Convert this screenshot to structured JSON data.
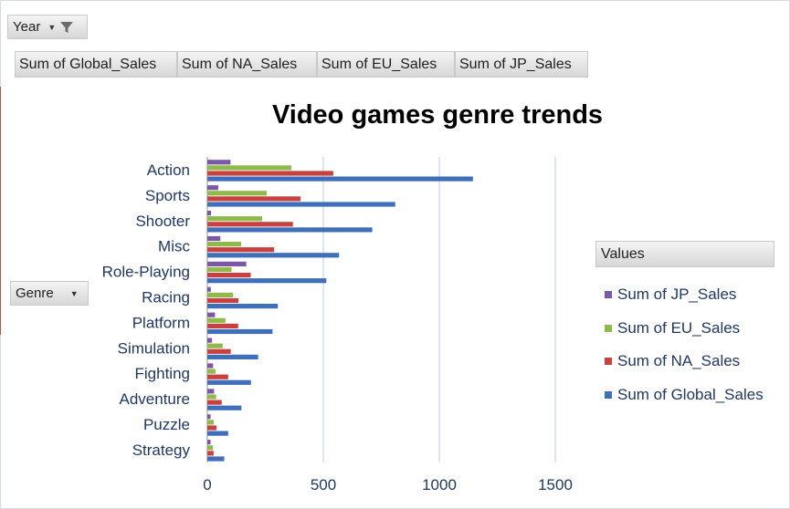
{
  "pivot": {
    "year_field": "Year",
    "genre_field": "Genre",
    "value_buttons": [
      "Sum of Global_Sales",
      "Sum of NA_Sales",
      "Sum of EU_Sales",
      "Sum of JP_Sales"
    ]
  },
  "legend": {
    "header": "Values",
    "items": [
      {
        "label": "Sum of JP_Sales",
        "color": "#7b57a7"
      },
      {
        "label": "Sum of EU_Sales",
        "color": "#8fba4b"
      },
      {
        "label": "Sum of NA_Sales",
        "color": "#c8413e"
      },
      {
        "label": "Sum of Global_Sales",
        "color": "#3f6fba"
      }
    ]
  },
  "chart_data": {
    "type": "bar",
    "orientation": "horizontal",
    "title": "Video games genre trends",
    "categories": [
      "Action",
      "Sports",
      "Shooter",
      "Misc",
      "Role-Playing",
      "Racing",
      "Platform",
      "Simulation",
      "Fighting",
      "Adventure",
      "Puzzle",
      "Strategy"
    ],
    "series": [
      {
        "name": "Sum of JP_Sales",
        "color": "#7b57a7",
        "values": [
          100,
          47,
          16,
          56,
          168,
          15,
          33,
          20,
          25,
          29,
          14,
          14
        ]
      },
      {
        "name": "Sum of EU_Sales",
        "color": "#8fba4b",
        "values": [
          362,
          256,
          236,
          146,
          104,
          111,
          78,
          66,
          35,
          38,
          28,
          24
        ]
      },
      {
        "name": "Sum of NA_Sales",
        "color": "#c8413e",
        "values": [
          543,
          402,
          369,
          288,
          187,
          134,
          133,
          101,
          90,
          62,
          40,
          27
        ]
      },
      {
        "name": "Sum of Global_Sales",
        "color": "#3f6fba",
        "values": [
          1145,
          810,
          711,
          568,
          513,
          304,
          281,
          219,
          188,
          147,
          90,
          73
        ]
      }
    ],
    "xlim": [
      0,
      1500
    ],
    "xticks": [
      0,
      500,
      1000,
      1500
    ],
    "grid": true,
    "legend_position": "right"
  }
}
